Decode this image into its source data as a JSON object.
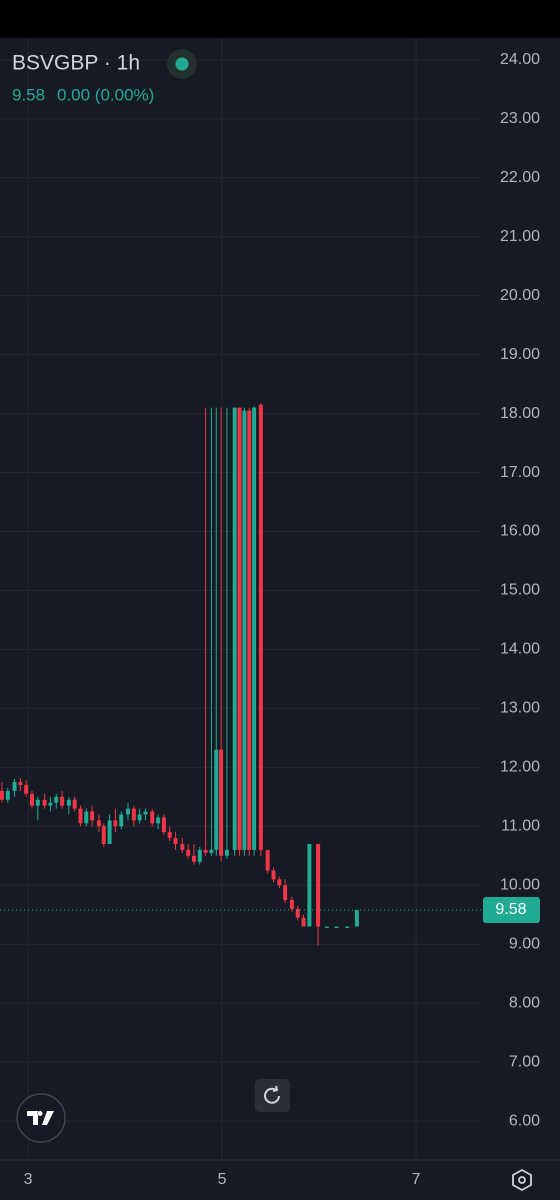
{
  "chart_data": {
    "type": "candlestick",
    "title": "BSVGBP · 1h",
    "header_price": "9.58",
    "header_change": "0.00 (0.00%)",
    "up_color": "#22ab94",
    "down_color": "#f23645",
    "x": [
      2.73,
      2.79,
      2.86,
      2.92,
      2.98,
      3.04,
      3.1,
      3.17,
      3.23,
      3.29,
      3.35,
      3.42,
      3.48,
      3.54,
      3.6,
      3.66,
      3.73,
      3.78,
      3.84,
      3.9,
      3.96,
      4.03,
      4.09,
      4.15,
      4.21,
      4.28,
      4.34,
      4.4,
      4.46,
      4.52,
      4.59,
      4.65,
      4.71,
      4.77,
      4.83,
      4.89,
      4.94,
      4.99,
      5.05,
      5.13,
      5.18,
      5.23,
      5.28,
      5.33,
      5.4,
      5.47,
      5.53,
      5.59,
      5.65,
      5.72,
      5.78,
      5.84,
      5.9,
      5.99,
      6.08,
      6.18,
      6.29,
      6.39
    ],
    "open": [
      11.6,
      11.45,
      11.6,
      11.75,
      11.7,
      11.55,
      11.35,
      11.45,
      11.35,
      11.4,
      11.5,
      11.35,
      11.45,
      11.3,
      11.05,
      11.25,
      11.1,
      11.0,
      10.7,
      11.1,
      11.0,
      11.2,
      11.3,
      11.1,
      11.2,
      11.25,
      11.05,
      11.15,
      10.9,
      10.8,
      10.7,
      10.6,
      10.5,
      10.4,
      10.6,
      10.55,
      10.6,
      12.3,
      10.5,
      10.6,
      18.1,
      10.6,
      18.05,
      10.6,
      18.15,
      10.6,
      10.25,
      10.1,
      10.0,
      9.75,
      9.6,
      9.45,
      9.3,
      10.7,
      9.3,
      9.3,
      9.3,
      9.3
    ],
    "high": [
      11.75,
      11.65,
      11.8,
      11.82,
      11.78,
      11.6,
      11.5,
      11.55,
      11.5,
      11.55,
      11.6,
      11.5,
      11.5,
      11.35,
      11.3,
      11.35,
      11.2,
      11.05,
      11.2,
      11.3,
      11.25,
      11.4,
      11.35,
      11.3,
      11.3,
      11.3,
      11.2,
      11.2,
      11.0,
      10.9,
      10.8,
      10.7,
      10.7,
      10.65,
      18.1,
      18.1,
      18.1,
      18.1,
      18.1,
      18.1,
      18.1,
      18.1,
      18.1,
      18.12,
      18.18,
      10.6,
      10.3,
      10.15,
      10.1,
      9.8,
      9.65,
      9.5,
      10.7,
      10.7,
      9.3,
      9.3,
      9.3,
      9.58
    ],
    "low": [
      11.4,
      11.4,
      11.5,
      11.6,
      11.5,
      11.3,
      11.1,
      11.3,
      11.25,
      11.3,
      11.3,
      11.2,
      11.25,
      11.0,
      11.0,
      11.0,
      10.9,
      10.65,
      10.7,
      10.9,
      10.95,
      11.1,
      11.0,
      11.05,
      11.1,
      11.0,
      10.95,
      10.85,
      10.75,
      10.6,
      10.55,
      10.45,
      10.35,
      10.35,
      10.5,
      10.5,
      10.5,
      10.4,
      10.45,
      10.5,
      10.5,
      10.5,
      10.5,
      10.5,
      10.5,
      10.2,
      10.05,
      9.95,
      9.7,
      9.55,
      9.4,
      9.3,
      9.3,
      8.98,
      9.3,
      9.3,
      9.3,
      9.3
    ],
    "close": [
      11.45,
      11.6,
      11.75,
      11.7,
      11.55,
      11.35,
      11.45,
      11.35,
      11.4,
      11.5,
      11.35,
      11.45,
      11.3,
      11.05,
      11.25,
      11.1,
      11.0,
      10.7,
      11.1,
      11.0,
      11.2,
      11.3,
      11.1,
      11.2,
      11.25,
      11.05,
      11.15,
      10.9,
      10.8,
      10.7,
      10.6,
      10.5,
      10.4,
      10.6,
      10.55,
      10.6,
      12.3,
      10.5,
      10.6,
      18.1,
      10.6,
      18.05,
      10.6,
      18.1,
      10.6,
      10.25,
      10.1,
      10.0,
      9.75,
      9.6,
      9.45,
      9.3,
      10.7,
      9.3,
      9.3,
      9.3,
      9.3,
      9.58
    ],
    "last_price": 9.58,
    "xlim": [
      2.71,
      7.68
    ],
    "xticks": [
      3,
      5,
      7
    ],
    "ylim": [
      5.34,
      24.37
    ],
    "yticks": [
      {
        "value": 24,
        "label": "24.00"
      },
      {
        "value": 23,
        "label": "23.00"
      },
      {
        "value": 22,
        "label": "22.00"
      },
      {
        "value": 21,
        "label": "21.00"
      },
      {
        "value": 20,
        "label": "20.00"
      },
      {
        "value": 19,
        "label": "19.00"
      },
      {
        "value": 18,
        "label": "18.00"
      },
      {
        "value": 17,
        "label": "17.00"
      },
      {
        "value": 16,
        "label": "16.00"
      },
      {
        "value": 15,
        "label": "15.00"
      },
      {
        "value": 14,
        "label": "14.00"
      },
      {
        "value": 13,
        "label": "13.00"
      },
      {
        "value": 12,
        "label": "12.00"
      },
      {
        "value": 11,
        "label": "11.00"
      },
      {
        "value": 10,
        "label": "10.00"
      },
      {
        "value": 9,
        "label": "9.00"
      },
      {
        "value": 8,
        "label": "8.00"
      },
      {
        "value": 7,
        "label": "7.00"
      },
      {
        "value": 6,
        "label": "6.00"
      }
    ],
    "grid": true
  }
}
